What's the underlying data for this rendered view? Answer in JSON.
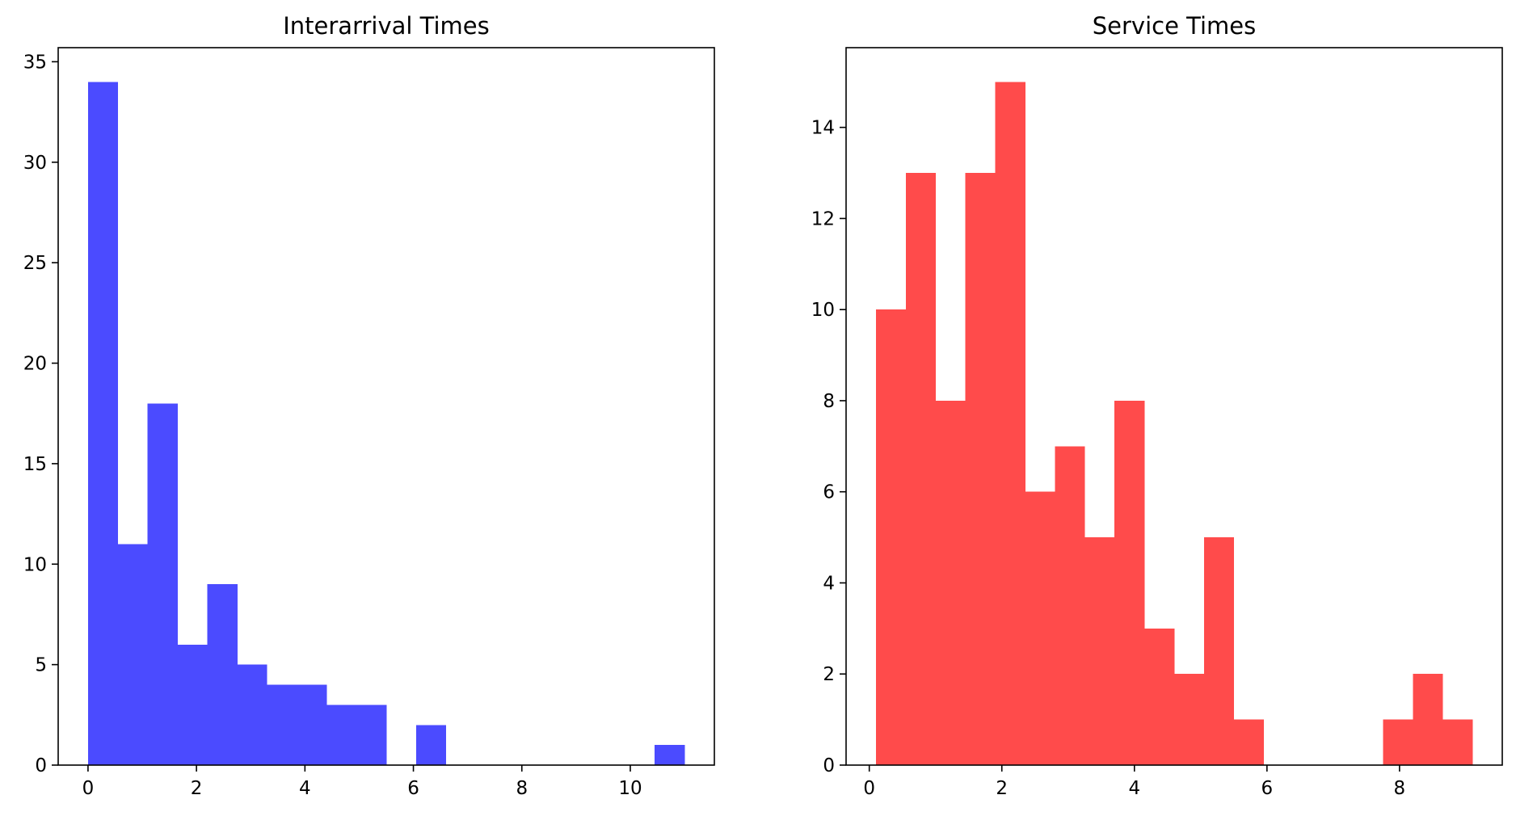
{
  "chart_data": [
    {
      "type": "bar",
      "title": "Interarrival Times",
      "xlabel": "",
      "ylabel": "",
      "color": "#4b4bff",
      "bins": [
        {
          "x0": 0.0,
          "x1": 0.55,
          "count": 34
        },
        {
          "x0": 0.55,
          "x1": 1.1,
          "count": 11
        },
        {
          "x0": 1.1,
          "x1": 1.65,
          "count": 18
        },
        {
          "x0": 1.65,
          "x1": 2.2,
          "count": 6
        },
        {
          "x0": 2.2,
          "x1": 2.75,
          "count": 9
        },
        {
          "x0": 2.75,
          "x1": 3.3,
          "count": 5
        },
        {
          "x0": 3.3,
          "x1": 3.85,
          "count": 4
        },
        {
          "x0": 3.85,
          "x1": 4.4,
          "count": 4
        },
        {
          "x0": 4.4,
          "x1": 4.95,
          "count": 3
        },
        {
          "x0": 4.95,
          "x1": 5.5,
          "count": 3
        },
        {
          "x0": 5.5,
          "x1": 6.05,
          "count": 0
        },
        {
          "x0": 6.05,
          "x1": 6.6,
          "count": 2
        },
        {
          "x0": 6.6,
          "x1": 7.15,
          "count": 0
        },
        {
          "x0": 7.15,
          "x1": 7.7,
          "count": 0
        },
        {
          "x0": 7.7,
          "x1": 8.25,
          "count": 0
        },
        {
          "x0": 8.25,
          "x1": 8.8,
          "count": 0
        },
        {
          "x0": 8.8,
          "x1": 9.35,
          "count": 0
        },
        {
          "x0": 9.35,
          "x1": 9.9,
          "count": 0
        },
        {
          "x0": 9.9,
          "x1": 10.45,
          "count": 0
        },
        {
          "x0": 10.45,
          "x1": 11.0,
          "count": 1
        }
      ],
      "xlim": [
        -0.55,
        11.55
      ],
      "ylim": [
        0,
        35.7
      ],
      "xticks": [
        0,
        2,
        4,
        6,
        8,
        10
      ],
      "yticks": [
        0,
        5,
        10,
        15,
        20,
        25,
        30,
        35
      ],
      "grid": false,
      "legend": "none"
    },
    {
      "type": "bar",
      "title": "Service Times",
      "xlabel": "",
      "ylabel": "",
      "color": "#ff4b4b",
      "bins": [
        {
          "x0": 0.1,
          "x1": 0.55,
          "count": 10
        },
        {
          "x0": 0.55,
          "x1": 1.0,
          "count": 13
        },
        {
          "x0": 1.0,
          "x1": 1.45,
          "count": 8
        },
        {
          "x0": 1.45,
          "x1": 1.9,
          "count": 13
        },
        {
          "x0": 1.9,
          "x1": 2.35,
          "count": 15
        },
        {
          "x0": 2.35,
          "x1": 2.8,
          "count": 6
        },
        {
          "x0": 2.8,
          "x1": 3.25,
          "count": 7
        },
        {
          "x0": 3.25,
          "x1": 3.7,
          "count": 5
        },
        {
          "x0": 3.7,
          "x1": 4.15,
          "count": 8
        },
        {
          "x0": 4.15,
          "x1": 4.6,
          "count": 3
        },
        {
          "x0": 4.6,
          "x1": 5.05,
          "count": 2
        },
        {
          "x0": 5.05,
          "x1": 5.5,
          "count": 5
        },
        {
          "x0": 5.5,
          "x1": 5.95,
          "count": 1
        },
        {
          "x0": 5.95,
          "x1": 6.4,
          "count": 0
        },
        {
          "x0": 6.4,
          "x1": 6.85,
          "count": 0
        },
        {
          "x0": 6.85,
          "x1": 7.3,
          "count": 0
        },
        {
          "x0": 7.3,
          "x1": 7.75,
          "count": 0
        },
        {
          "x0": 7.75,
          "x1": 8.2,
          "count": 1
        },
        {
          "x0": 8.2,
          "x1": 8.65,
          "count": 2
        },
        {
          "x0": 8.65,
          "x1": 9.1,
          "count": 1
        }
      ],
      "xlim": [
        -0.35,
        9.55
      ],
      "ylim": [
        0,
        15.75
      ],
      "xticks": [
        0,
        2,
        4,
        6,
        8
      ],
      "yticks": [
        0,
        2,
        4,
        6,
        8,
        10,
        12,
        14
      ],
      "grid": false,
      "legend": "none"
    }
  ]
}
